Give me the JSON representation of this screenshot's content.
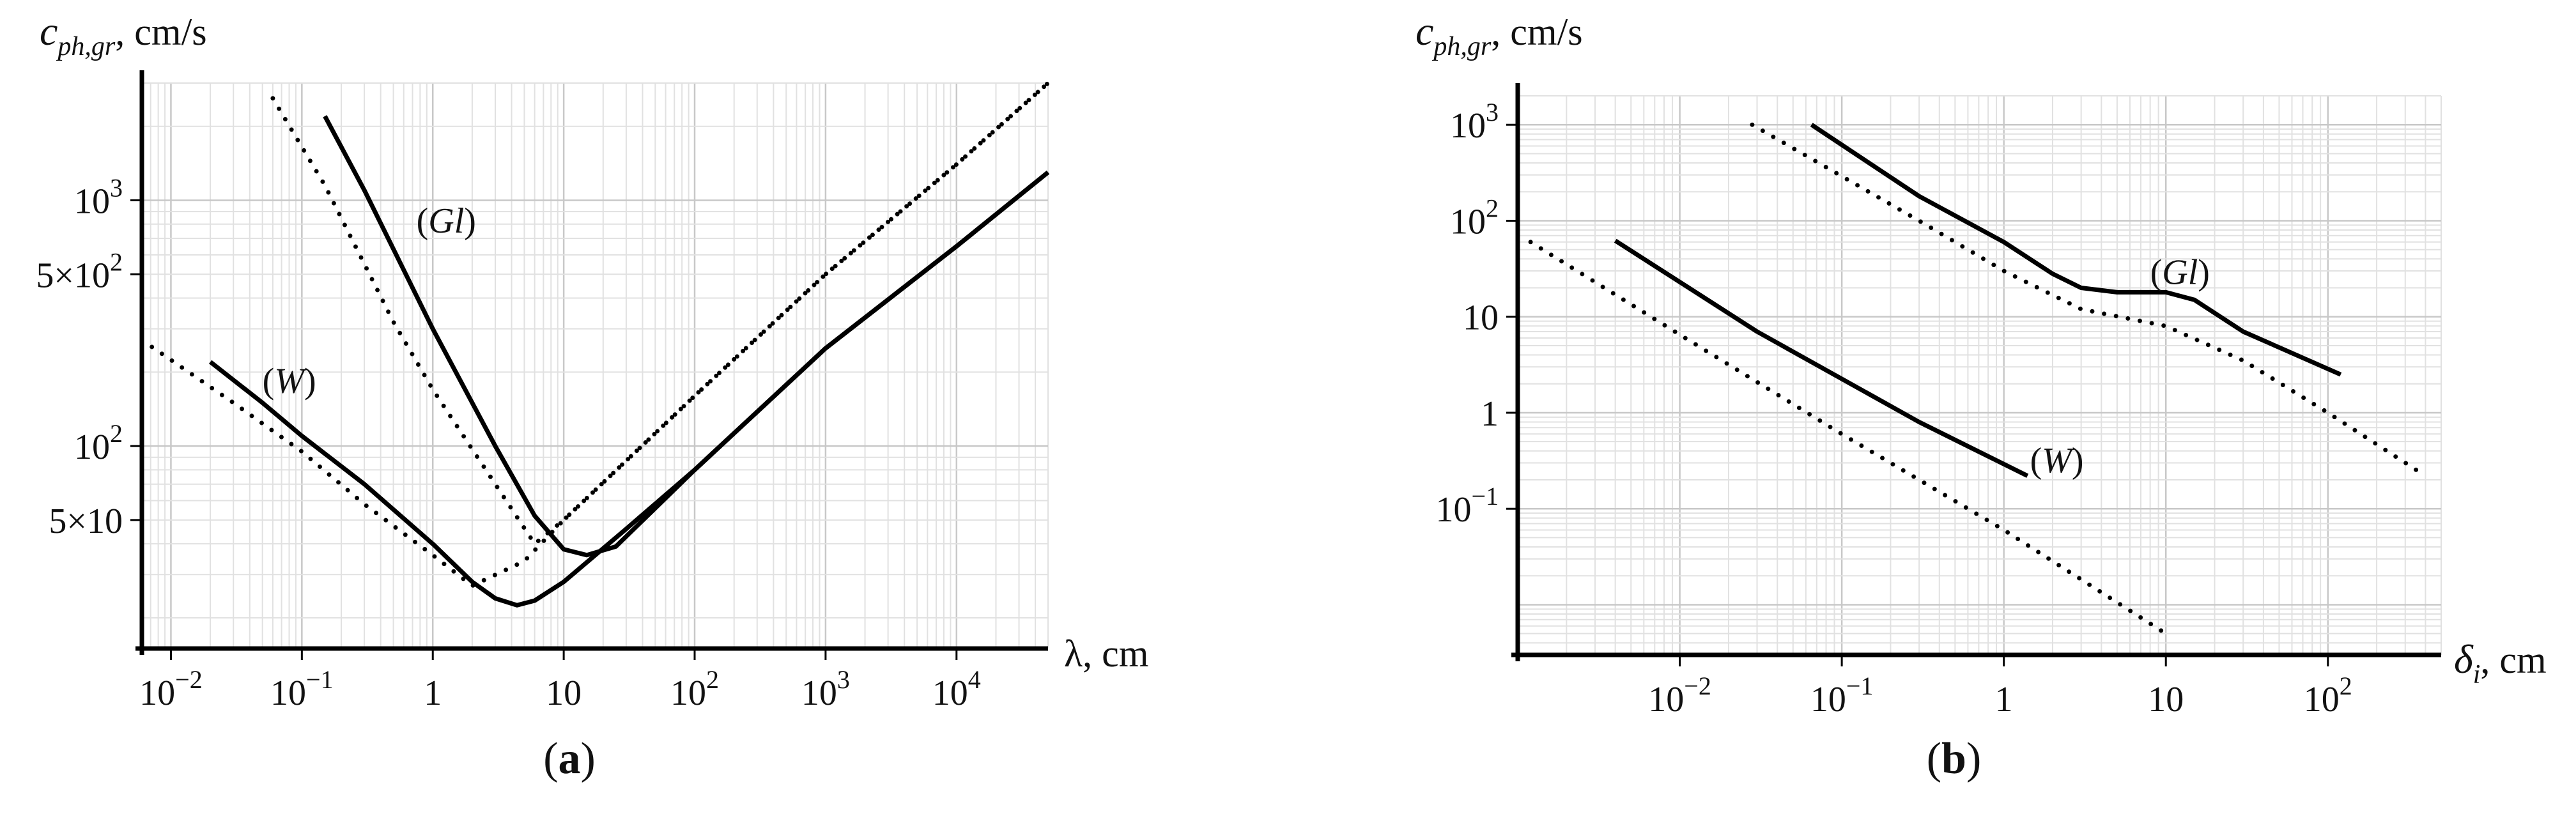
{
  "chart_data": [
    {
      "type": "line",
      "panel": "a",
      "caption": "(a)",
      "ylabel": "c_ph,gr, cm/s",
      "xlabel": "λ, cm",
      "x_scale": "log",
      "y_scale": "log",
      "xlim": [
        0.006,
        50000
      ],
      "ylim": [
        15,
        3000
      ],
      "grid": true,
      "x_tick_labels": [
        {
          "base": "10",
          "exp": "−2",
          "value": 0.01
        },
        {
          "base": "10",
          "exp": "−1",
          "value": 0.1
        },
        {
          "text": "1",
          "value": 1
        },
        {
          "text": "10",
          "value": 10
        },
        {
          "base": "10",
          "exp": "2",
          "value": 100
        },
        {
          "base": "10",
          "exp": "3",
          "value": 1000
        },
        {
          "base": "10",
          "exp": "4",
          "value": 10000
        }
      ],
      "y_tick_labels": [
        {
          "text": "5×10",
          "value": 50
        },
        {
          "base": "10",
          "exp": "2",
          "value": 100
        },
        {
          "text": "5×10",
          "exp": "2",
          "value": 500
        },
        {
          "base": "10",
          "exp": "3",
          "value": 1000
        }
      ],
      "series": [
        {
          "label": "(W)",
          "style": "solid",
          "x": [
            0.02,
            0.05,
            0.1,
            0.3,
            1,
            2,
            3,
            4.4,
            6,
            10,
            30,
            100,
            1000,
            10000,
            50000
          ],
          "y": [
            220,
            150,
            110,
            70,
            40,
            28,
            24,
            22.5,
            23.5,
            28,
            46,
            80,
            250,
            650,
            1300
          ]
        },
        {
          "label": "",
          "style": "dotted",
          "x": [
            0.006,
            0.03,
            0.1,
            0.3,
            1,
            2,
            5,
            10,
            100,
            1000,
            10000,
            50000
          ],
          "y": [
            270,
            150,
            95,
            58,
            36,
            27,
            34,
            50,
            160,
            500,
            1400,
            3000
          ]
        },
        {
          "label": "(Gl)",
          "style": "solid",
          "x": [
            0.15,
            0.3,
            1,
            3,
            6,
            10,
            15,
            25,
            100,
            1000,
            10000,
            50000
          ],
          "y": [
            2200,
            1100,
            300,
            100,
            52,
            38,
            36,
            39,
            80,
            250,
            650,
            1300
          ]
        },
        {
          "label": "",
          "style": "dotted",
          "x": [
            0.06,
            0.15,
            0.5,
            1,
            3,
            6,
            10,
            100,
            1000,
            10000,
            50000
          ],
          "y": [
            2600,
            1150,
            320,
            170,
            70,
            40,
            50,
            160,
            500,
            1400,
            3000
          ]
        }
      ]
    },
    {
      "type": "line",
      "panel": "b",
      "caption": "(b)",
      "ylabel": "c_ph,gr, cm/s",
      "xlabel": "δ_i, cm",
      "x_scale": "log",
      "y_scale": "log",
      "xlim": [
        0.001,
        500
      ],
      "ylim": [
        0.003,
        2000
      ],
      "grid": true,
      "x_tick_labels": [
        {
          "base": "10",
          "exp": "−2",
          "value": 0.01
        },
        {
          "base": "10",
          "exp": "−1",
          "value": 0.1
        },
        {
          "text": "1",
          "value": 1
        },
        {
          "text": "10",
          "value": 10
        },
        {
          "base": "10",
          "exp": "2",
          "value": 100
        }
      ],
      "y_tick_labels": [
        {
          "base": "10",
          "exp": "−1",
          "value": 0.1
        },
        {
          "text": "1",
          "value": 1
        },
        {
          "text": "10",
          "value": 10
        },
        {
          "base": "10",
          "exp": "2",
          "value": 100
        },
        {
          "base": "10",
          "exp": "3",
          "value": 1000
        }
      ],
      "series": [
        {
          "label": "(W)",
          "style": "solid",
          "x": [
            0.004,
            0.03,
            0.3,
            1.4
          ],
          "y": [
            62,
            7,
            0.8,
            0.22
          ]
        },
        {
          "label": "",
          "style": "dotted",
          "x": [
            0.0012,
            0.01,
            0.1,
            1,
            10
          ],
          "y": [
            60,
            6.5,
            0.6,
            0.06,
            0.005
          ]
        },
        {
          "label": "(Gl)",
          "style": "solid",
          "x": [
            0.065,
            0.3,
            1,
            2,
            3,
            5,
            10,
            15,
            30,
            120
          ],
          "y": [
            1000,
            180,
            60,
            28,
            20,
            18,
            18,
            15,
            7,
            2.5
          ]
        },
        {
          "label": "",
          "style": "dotted",
          "x": [
            0.028,
            0.3,
            1,
            3,
            10,
            30,
            100,
            400
          ],
          "y": [
            1000,
            100,
            30,
            12,
            8,
            3.5,
            1,
            0.22
          ]
        }
      ]
    }
  ]
}
